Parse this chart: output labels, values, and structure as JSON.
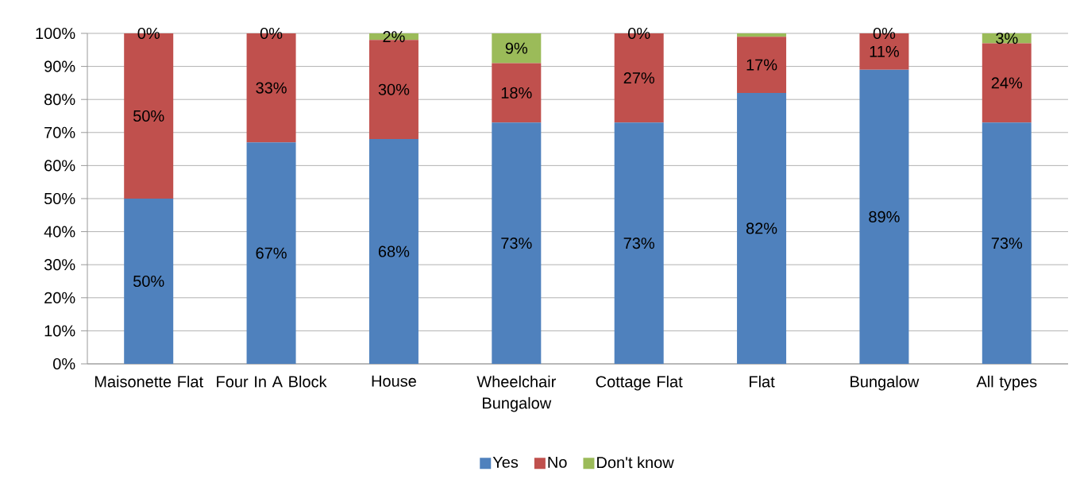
{
  "chart_data": {
    "type": "bar",
    "stacked": true,
    "categories": [
      "Maisonette Flat",
      "Four In A Block",
      "House",
      "Wheelchair Bungalow",
      "Cottage Flat",
      "Flat",
      "Bungalow",
      "All types"
    ],
    "series": [
      {
        "name": "Yes",
        "color": "#4f81bd",
        "values": [
          50,
          67,
          68,
          73,
          73,
          82,
          89,
          73
        ],
        "value_labels": [
          "50%",
          "67%",
          "68%",
          "73%",
          "73%",
          "82%",
          "89%",
          "73%"
        ]
      },
      {
        "name": "No",
        "color": "#c0504d",
        "values": [
          50,
          33,
          30,
          18,
          27,
          17,
          11,
          24
        ],
        "value_labels": [
          "50%",
          "33%",
          "30%",
          "18%",
          "27%",
          "17%",
          "11%",
          "24%"
        ]
      },
      {
        "name": "Don't know",
        "color": "#9bbb59",
        "values": [
          0,
          0,
          2,
          9,
          0,
          1,
          0,
          3
        ],
        "value_labels": [
          "0%",
          "0%",
          "2%",
          "9%",
          "0%",
          null,
          "0%",
          "3%"
        ]
      }
    ],
    "ylim": [
      0,
      100
    ],
    "yticks": [
      {
        "value": 0,
        "label": "0%"
      },
      {
        "value": 10,
        "label": "10%"
      },
      {
        "value": 20,
        "label": "20%"
      },
      {
        "value": 30,
        "label": "30%"
      },
      {
        "value": 40,
        "label": "40%"
      },
      {
        "value": 50,
        "label": "50%"
      },
      {
        "value": 60,
        "label": "60%"
      },
      {
        "value": 70,
        "label": "70%"
      },
      {
        "value": 80,
        "label": "80%"
      },
      {
        "value": 90,
        "label": "90%"
      },
      {
        "value": 100,
        "label": "100%"
      }
    ],
    "grid": "y",
    "legend": "bottom"
  }
}
